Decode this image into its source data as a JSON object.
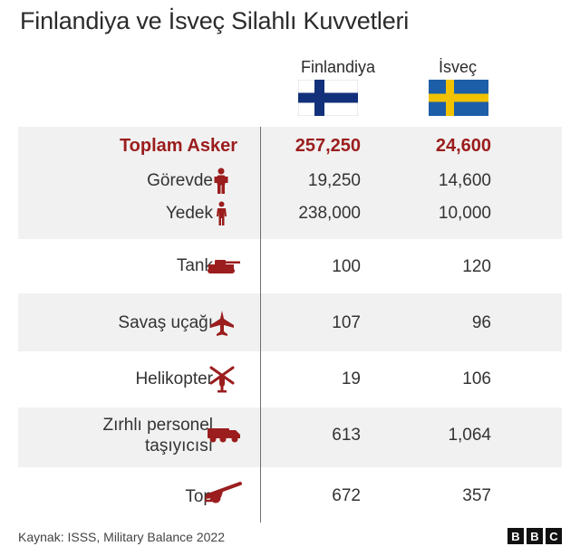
{
  "title": "Finlandiya ve İsveç Silahlı Kuvvetleri",
  "columns": {
    "finland": "Finlandiya",
    "sweden": "İsveç"
  },
  "flags": {
    "finland_blue": "#13307a",
    "sweden_blue": "#1c5ea8",
    "sweden_yellow": "#f2c200"
  },
  "accent_color": "#9b1d1d",
  "rows": {
    "total": {
      "label": "Toplam Asker",
      "finland": "257,250",
      "sweden": "24,600"
    },
    "active": {
      "label": "Görevde",
      "icon": "soldier-icon",
      "finland": "19,250",
      "sweden": "14,600"
    },
    "reserve": {
      "label": "Yedek",
      "icon": "person-icon",
      "finland": "238,000",
      "sweden": "10,000"
    },
    "tank": {
      "label": "Tank",
      "icon": "tank-icon",
      "finland": "100",
      "sweden": "120"
    },
    "fighter": {
      "label": "Savaş uçağı",
      "icon": "fighter-jet-icon",
      "finland": "107",
      "sweden": "96"
    },
    "helicopter": {
      "label": "Helikopter",
      "icon": "helicopter-icon",
      "finland": "19",
      "sweden": "106"
    },
    "apc": {
      "label_line1": "Zırhlı personel",
      "label_line2": "taşıyıcısı",
      "icon": "armored-vehicle-icon",
      "finland": "613",
      "sweden": "1,064"
    },
    "artillery": {
      "label": "Top",
      "icon": "artillery-icon",
      "finland": "672",
      "sweden": "357"
    }
  },
  "footer": {
    "source": "Kaynak: ISSS, Military Balance 2022",
    "logo": [
      "B",
      "B",
      "C"
    ]
  }
}
